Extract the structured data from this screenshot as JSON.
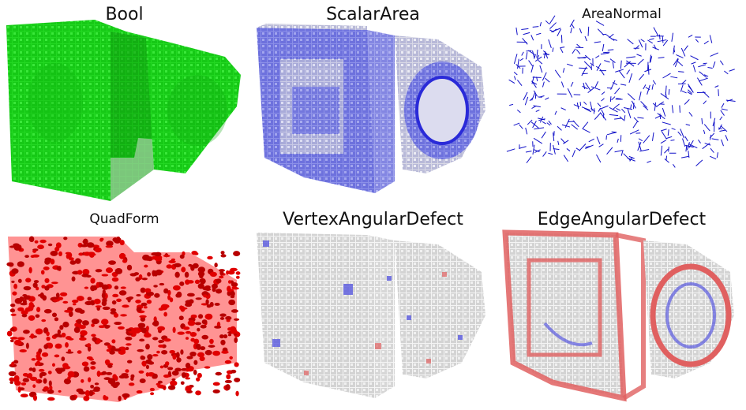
{
  "panels": [
    {
      "title": "Bool",
      "style": "green"
    },
    {
      "title": "ScalarArea",
      "style": "blue"
    },
    {
      "title": "AreaNormal",
      "style": "arrows"
    },
    {
      "title": "QuadForm",
      "style": "red"
    },
    {
      "title": "VertexAngularDefect",
      "style": "whitesparse"
    },
    {
      "title": "EdgeAngularDefect",
      "style": "whitered"
    }
  ],
  "colors": {
    "green": "#19d119",
    "blue": "#6b6fe0",
    "deep_blue": "#2a2ad8",
    "arrow_blue": "#1010c8",
    "red": "#e00000",
    "gray": "#d8d8d8",
    "highlight_red": "#e06060",
    "highlight_blue": "#5a5ae0"
  }
}
